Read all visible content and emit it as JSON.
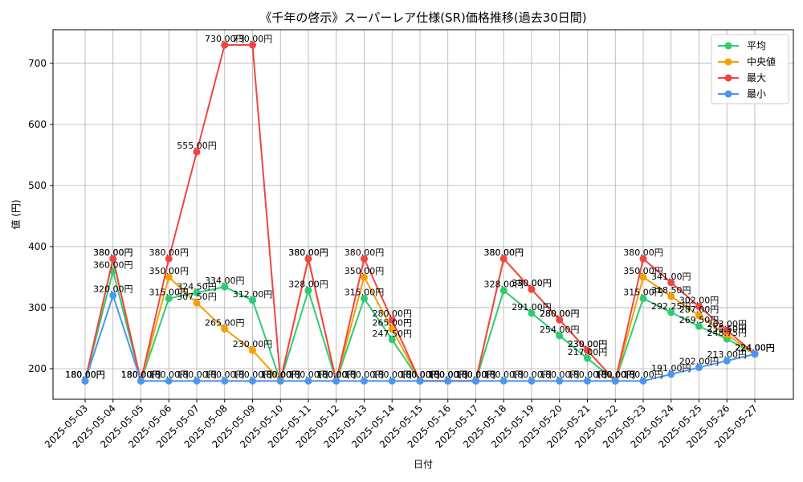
{
  "chart_data": {
    "type": "line",
    "title": "《千年の啓示》スーパーレア仕様(SR)価格推移(過去30日間)",
    "xlabel": "日付",
    "ylabel": "値 (円)",
    "ylim": [
      150,
      755
    ],
    "yticks": [
      200,
      300,
      400,
      500,
      600,
      700
    ],
    "grid": true,
    "legend_position": "top-right",
    "value_suffix": "円",
    "categories": [
      "2025-05-03",
      "2025-05-04",
      "2025-05-05",
      "2025-05-06",
      "2025-05-07",
      "2025-05-08",
      "2025-05-09",
      "2025-05-10",
      "2025-05-11",
      "2025-05-12",
      "2025-05-13",
      "2025-05-14",
      "2025-05-15",
      "2025-05-16",
      "2025-05-17",
      "2025-05-18",
      "2025-05-19",
      "2025-05-20",
      "2025-05-21",
      "2025-05-22",
      "2025-05-23",
      "2025-05-24",
      "2025-05-25",
      "2025-05-26",
      "2025-05-27"
    ],
    "series": [
      {
        "name": "平均",
        "color": "#2ecc71",
        "values": [
          180,
          360,
          180,
          315,
          324.5,
          334,
          312,
          180,
          328,
          180,
          315,
          247.5,
          180,
          180,
          180,
          328,
          291,
          254,
          217,
          180,
          315,
          292.25,
          269.5,
          248.75,
          224
        ]
      },
      {
        "name": "中央値",
        "color": "#f5a000",
        "values": [
          180,
          380,
          180,
          350,
          307.5,
          265,
          230,
          180,
          380,
          180,
          350,
          265,
          180,
          180,
          180,
          380,
          330,
          280,
          230,
          180,
          350,
          318.5,
          287,
          255.5,
          224
        ]
      },
      {
        "name": "最大",
        "color": "#f04545",
        "values": [
          180,
          380,
          180,
          380,
          555,
          730,
          730,
          180,
          380,
          180,
          380,
          280,
          180,
          180,
          180,
          380,
          330,
          280,
          230,
          180,
          380,
          341,
          302,
          263,
          224
        ]
      },
      {
        "name": "最小",
        "color": "#4a96f0",
        "values": [
          180,
          320,
          180,
          180,
          180,
          180,
          180,
          180,
          180,
          180,
          180,
          180,
          180,
          180,
          180,
          180,
          180,
          180,
          180,
          180,
          180,
          191,
          202,
          213,
          224
        ]
      }
    ]
  }
}
